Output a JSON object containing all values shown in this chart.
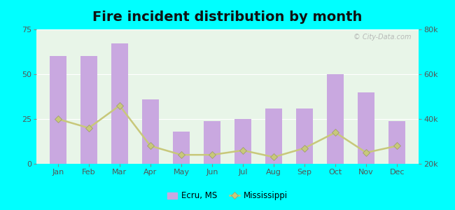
{
  "title": "Fire incident distribution by month",
  "months": [
    "Jan",
    "Feb",
    "Mar",
    "Apr",
    "May",
    "Jun",
    "Jul",
    "Aug",
    "Sep",
    "Oct",
    "Nov",
    "Dec"
  ],
  "ecru_values": [
    60,
    60,
    67,
    36,
    18,
    24,
    25,
    31,
    31,
    50,
    40,
    24
  ],
  "ms_values_right": [
    40000,
    36000,
    46000,
    28000,
    24000,
    24000,
    26000,
    23000,
    27000,
    34000,
    25000,
    28000
  ],
  "bar_color": "#c9a8e0",
  "bar_alpha": 1.0,
  "line_color": "#c8c87a",
  "line_marker": "D",
  "line_marker_color": "#c8c87a",
  "figure_bg_color": "#00ffff",
  "plot_bg_color": "#e8f5e8",
  "ylim_left": [
    0,
    75
  ],
  "ylim_right": [
    20000,
    80000
  ],
  "yticks_left": [
    0,
    25,
    50,
    75
  ],
  "yticks_right": [
    20000,
    40000,
    60000,
    80000
  ],
  "ytick_right_labels": [
    "20k",
    "40k",
    "60k",
    "80k"
  ],
  "title_fontsize": 14,
  "tick_label_color": "#555555",
  "watermark_text": "© City-Data.com",
  "legend_ecru_label": "Ecru, MS",
  "legend_ms_label": "Mississippi"
}
